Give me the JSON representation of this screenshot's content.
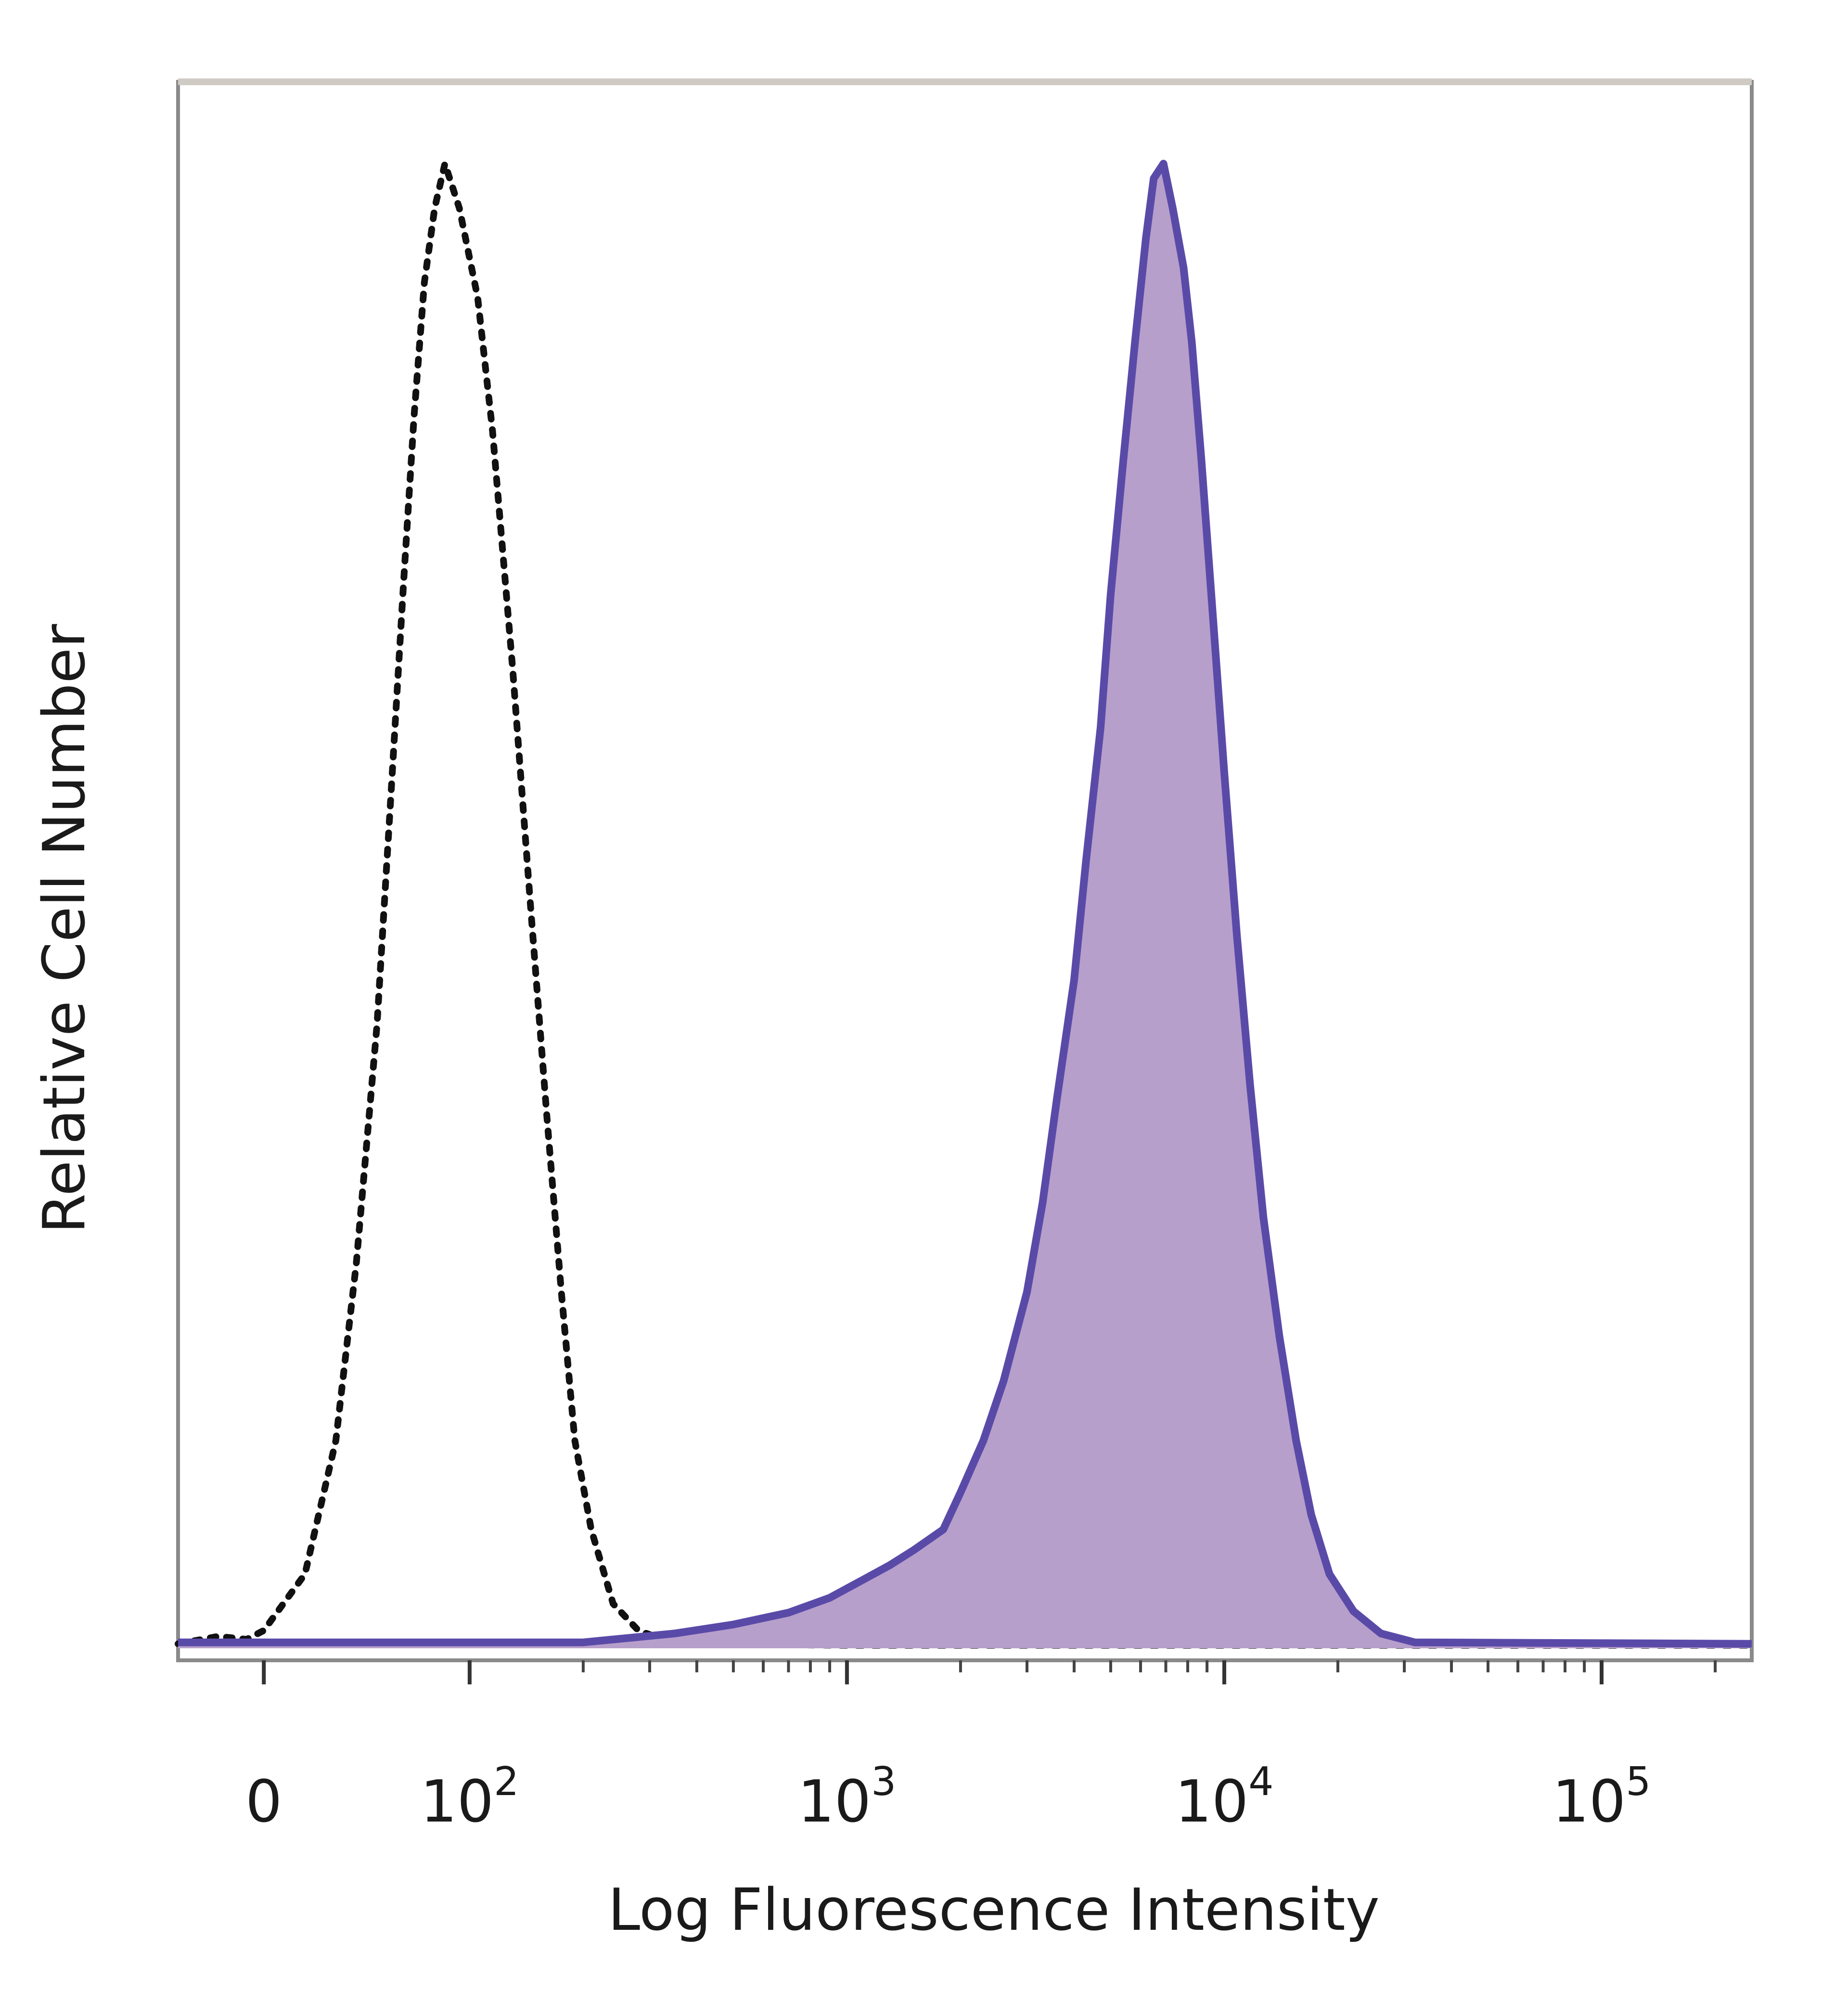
{
  "chart_data": {
    "type": "area",
    "xlabel": "Log Fluorescence Intensity",
    "ylabel": "Relative Cell Number",
    "x_scale": "biexponential (logicle)",
    "xlim": [
      -150,
      250000
    ],
    "ylim": [
      0,
      100
    ],
    "grid": false,
    "legend": "none",
    "x_ticks": [
      {
        "value": 0,
        "base": "0",
        "exp": ""
      },
      {
        "value": 100,
        "base": "10",
        "exp": "2"
      },
      {
        "value": 1000,
        "base": "10",
        "exp": "3"
      },
      {
        "value": 10000,
        "base": "10",
        "exp": "4"
      },
      {
        "value": 100000,
        "base": "10",
        "exp": "5"
      }
    ],
    "series": [
      {
        "style": "dotted-outline",
        "color": "#111111",
        "points": [
          [
            -150,
            0.3
          ],
          [
            -80,
            0.8
          ],
          [
            -30,
            0.6
          ],
          [
            0,
            1.2
          ],
          [
            20,
            5
          ],
          [
            35,
            14
          ],
          [
            45,
            26
          ],
          [
            55,
            42
          ],
          [
            62,
            58
          ],
          [
            68,
            72
          ],
          [
            73,
            83
          ],
          [
            78,
            92
          ],
          [
            83,
            97
          ],
          [
            88,
            100
          ],
          [
            95,
            97
          ],
          [
            105,
            91
          ],
          [
            115,
            82
          ],
          [
            130,
            66
          ],
          [
            145,
            50
          ],
          [
            160,
            36
          ],
          [
            175,
            24
          ],
          [
            190,
            14
          ],
          [
            210,
            8
          ],
          [
            240,
            3
          ],
          [
            280,
            1.2
          ],
          [
            350,
            0.3
          ],
          [
            1000,
            0.2
          ],
          [
            250000,
            0.2
          ]
        ]
      },
      {
        "style": "filled",
        "color": "#5a4aa8",
        "fill": "#b79fcb",
        "points": [
          [
            -150,
            0.4
          ],
          [
            200,
            0.4
          ],
          [
            350,
            1.0
          ],
          [
            500,
            1.6
          ],
          [
            700,
            2.4
          ],
          [
            900,
            3.4
          ],
          [
            1100,
            4.6
          ],
          [
            1300,
            5.6
          ],
          [
            1500,
            6.6
          ],
          [
            1800,
            8
          ],
          [
            2000,
            10.5
          ],
          [
            2300,
            14
          ],
          [
            2600,
            18
          ],
          [
            3000,
            24
          ],
          [
            3300,
            30
          ],
          [
            3600,
            37
          ],
          [
            4000,
            45
          ],
          [
            4300,
            53
          ],
          [
            4700,
            62
          ],
          [
            5000,
            71
          ],
          [
            5400,
            80
          ],
          [
            5800,
            88
          ],
          [
            6200,
            95
          ],
          [
            6500,
            99
          ],
          [
            6900,
            100
          ],
          [
            7300,
            97
          ],
          [
            7800,
            93
          ],
          [
            8200,
            88
          ],
          [
            8700,
            80
          ],
          [
            9300,
            70
          ],
          [
            10000,
            59
          ],
          [
            10800,
            48
          ],
          [
            11700,
            38
          ],
          [
            12700,
            29
          ],
          [
            14000,
            21
          ],
          [
            15500,
            14
          ],
          [
            17000,
            9
          ],
          [
            19000,
            5
          ],
          [
            22000,
            2.5
          ],
          [
            26000,
            1
          ],
          [
            32000,
            0.4
          ],
          [
            250000,
            0.3
          ]
        ]
      }
    ]
  }
}
